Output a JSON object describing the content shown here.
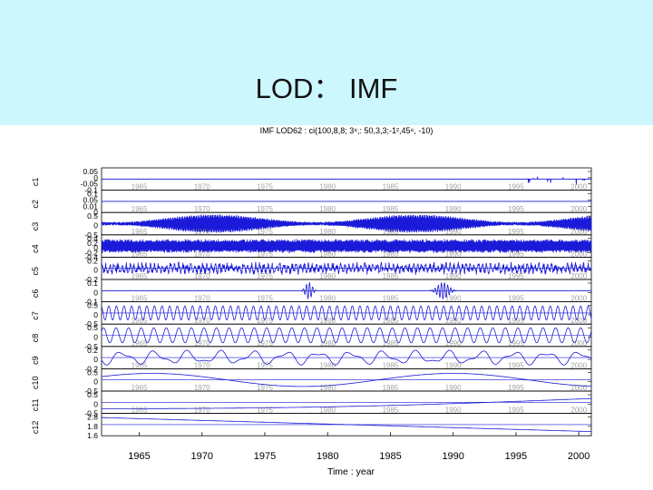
{
  "slide": {
    "title": "LOD： IMF",
    "header_color": "#ccf7fd"
  },
  "chart_data": {
    "type": "line",
    "title": "IMF LOD62 : ci(100,8,8; 3⁸,: 50,3,3;-1²,45⁸, -10)",
    "xlabel": "Time : year",
    "x_ticks": [
      "1965",
      "1970",
      "1975",
      "1980",
      "1985",
      "1990",
      "1995",
      "2000"
    ],
    "xlim": [
      1962,
      2001
    ],
    "line_color": "#1a1ad8",
    "grid": false,
    "series": [
      {
        "name": "c1",
        "tick_labels": [
          "0.05",
          "0",
          "-0.05",
          "-0.1"
        ],
        "ylim": [
          -0.1,
          0.05
        ],
        "description": "near-zero until ~1994, then sparse spikes"
      },
      {
        "name": "c2",
        "tick_labels": [
          "0.1",
          "0.05",
          "0.01",
          "0"
        ],
        "ylim": [
          0,
          0.1
        ],
        "description": "flat near zero"
      },
      {
        "name": "c3",
        "tick_labels": [
          "0.5",
          "0",
          "-0.5"
        ],
        "ylim": [
          -0.5,
          0.5
        ],
        "description": "dense high-frequency oscillation with amplitude modulation"
      },
      {
        "name": "c4",
        "tick_labels": [
          "0.4",
          "0.2",
          "0",
          "-0.2",
          "-0.4"
        ],
        "ylim": [
          -0.4,
          0.4
        ],
        "description": "dense high-frequency oscillation"
      },
      {
        "name": "c5",
        "tick_labels": [
          "0.2",
          "0",
          "-0.2"
        ],
        "ylim": [
          -0.2,
          0.2
        ],
        "description": "irregular oscillation"
      },
      {
        "name": "c6",
        "tick_labels": [
          "0.1",
          "0",
          "-0.1"
        ],
        "ylim": [
          -0.1,
          0.1
        ],
        "description": "flat with bursts near 1978 and 1989"
      },
      {
        "name": "c7",
        "tick_labels": [
          "0.5",
          "0",
          "-0.5"
        ],
        "ylim": [
          -0.5,
          0.5
        ],
        "description": "oscillation, roughly 0.6-year period"
      },
      {
        "name": "c8",
        "tick_labels": [
          "0.5",
          "0",
          "-0.5"
        ],
        "ylim": [
          -0.5,
          0.5
        ],
        "description": "oscillation, roughly 1-year period"
      },
      {
        "name": "c9",
        "tick_labels": [
          "0.2",
          "0",
          "-0.2"
        ],
        "ylim": [
          -0.2,
          0.2
        ],
        "description": "slow oscillation, several-year period"
      },
      {
        "name": "c10",
        "tick_labels": [
          "0.5",
          "0",
          "-0.5"
        ],
        "ylim": [
          -0.5,
          0.5
        ],
        "description": "decadal wave"
      },
      {
        "name": "c11",
        "tick_labels": [
          "0.5",
          "0",
          "-0.5"
        ],
        "ylim": [
          -0.5,
          0.5
        ],
        "description": "very slow wave"
      },
      {
        "name": "c12",
        "tick_labels": [
          "2.8",
          "1.8",
          "1.6"
        ],
        "ylim": [
          1.6,
          2.8
        ],
        "description": "monotonic decreasing trend"
      }
    ]
  }
}
